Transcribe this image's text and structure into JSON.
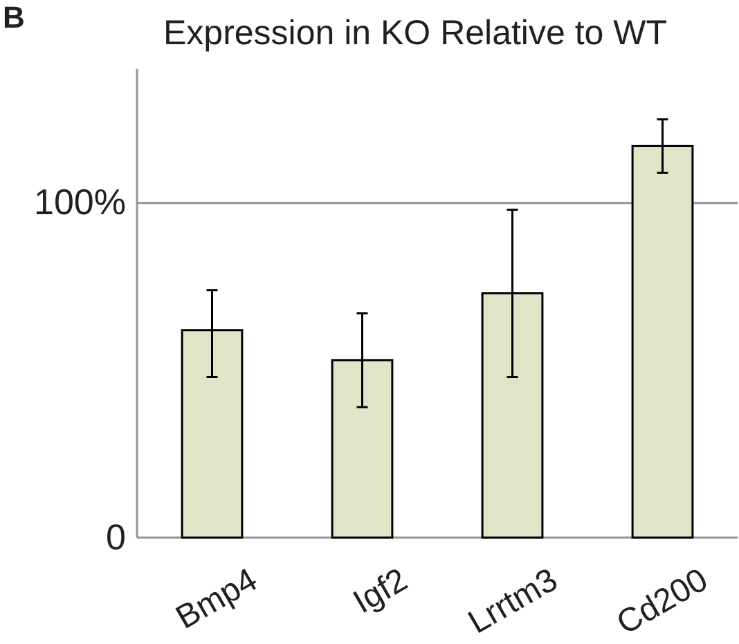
{
  "chart_data": {
    "type": "bar",
    "title": "Expression in KO Relative to WT",
    "annotations": [
      "B"
    ],
    "categories": [
      "Bmp4",
      "Igf2",
      "Lrrtm3",
      "Cd200"
    ],
    "values": [
      62,
      53,
      73,
      117
    ],
    "errors": [
      [
        48,
        74
      ],
      [
        39,
        67
      ],
      [
        48,
        98
      ],
      [
        109,
        125
      ]
    ],
    "color": "#dfe6c8",
    "ylim": [
      0,
      140
    ],
    "yticks": [
      0,
      {
        "value": 100,
        "label": "100%"
      }
    ],
    "grid": "y"
  }
}
